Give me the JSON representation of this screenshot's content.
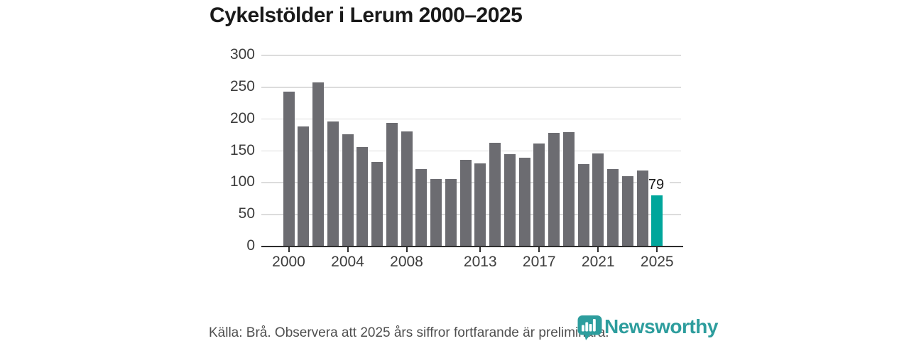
{
  "title": "Cykelstölder i Lerum 2000–2025",
  "footer": {
    "source_note": "Källa: Brå. Observera att 2025 års siffror fortfarande är preliminära."
  },
  "branding": {
    "name": "Newsworthy",
    "icon": "bar-chart-speech-bubble-icon"
  },
  "colors": {
    "bar": "#6c6c71",
    "highlight": "#00a69b",
    "brand": "#2d9d9d",
    "grid": "#dcdcdc",
    "axis": "#2e2e2e",
    "text": "#3c3c3c"
  },
  "chart_data": {
    "type": "bar",
    "title": "Cykelstölder i Lerum 2000–2025",
    "x": [
      2000,
      2001,
      2002,
      2003,
      2004,
      2005,
      2006,
      2007,
      2008,
      2009,
      2010,
      2011,
      2012,
      2013,
      2014,
      2015,
      2016,
      2017,
      2018,
      2019,
      2020,
      2021,
      2022,
      2023,
      2024,
      2025
    ],
    "values": [
      242,
      188,
      257,
      195,
      175,
      155,
      132,
      193,
      180,
      121,
      105,
      105,
      135,
      130,
      162,
      144,
      138,
      161,
      178,
      179,
      128,
      145,
      121,
      109,
      118,
      79
    ],
    "ylim": [
      0,
      300
    ],
    "y_ticks": [
      0,
      50,
      100,
      150,
      200,
      250,
      300
    ],
    "x_tick_years": [
      2000,
      2004,
      2008,
      2013,
      2017,
      2021,
      2025
    ],
    "grid": "horizontal",
    "legend": "none",
    "highlight_year": 2025,
    "highlight_value_label": "79"
  }
}
